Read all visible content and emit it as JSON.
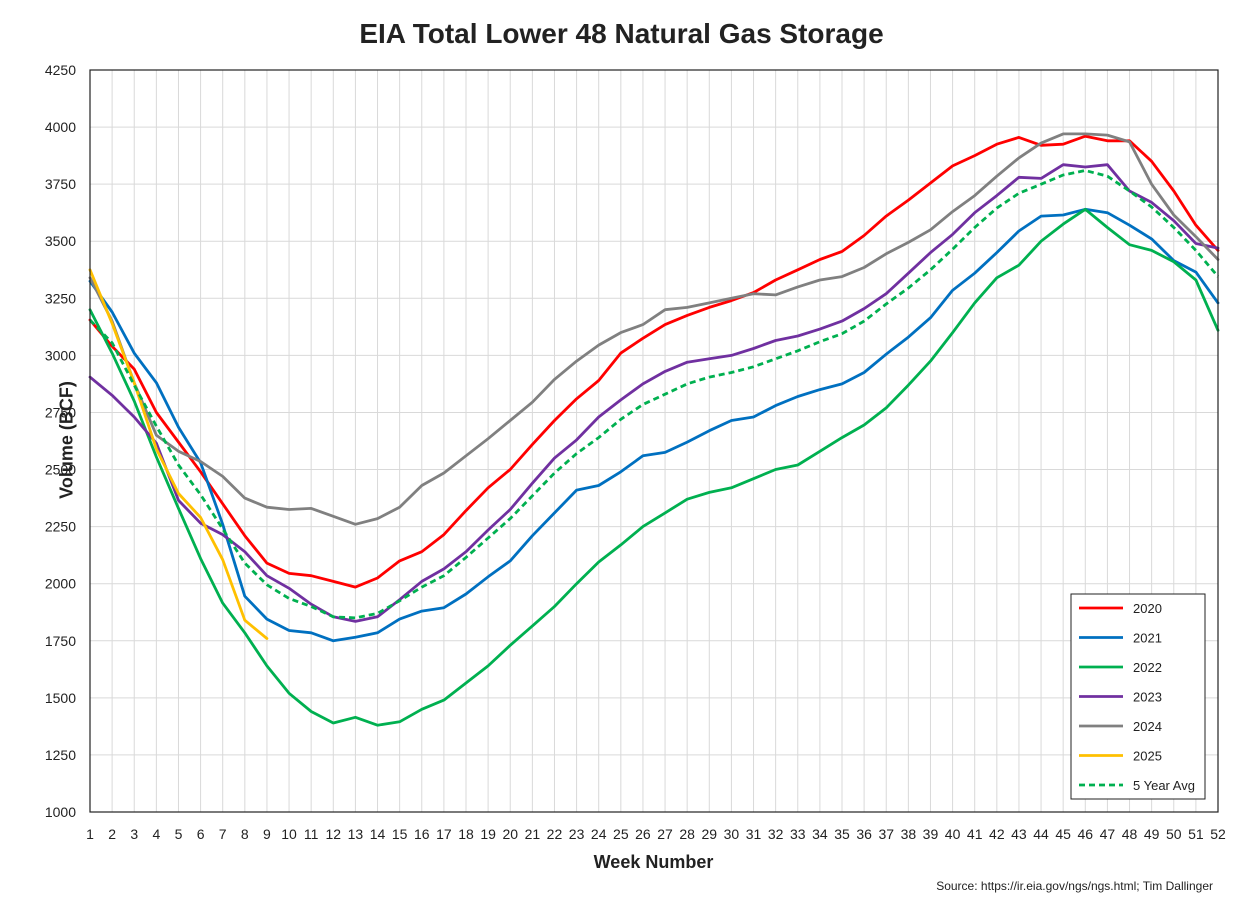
{
  "chart_data": {
    "type": "line",
    "title": "EIA Total Lower 48 Natural Gas Storage",
    "xlabel": "Week Number",
    "ylabel": "Volume (BCF)",
    "source": "Source: https://ir.eia.gov/ngs/ngs.html; Tim Dallinger",
    "xlim": [
      1,
      52
    ],
    "ylim": [
      1000,
      4250
    ],
    "grid": true,
    "legend_position": "bottom-right",
    "x_ticks": [
      1,
      2,
      3,
      4,
      5,
      6,
      7,
      8,
      9,
      10,
      11,
      12,
      13,
      14,
      15,
      16,
      17,
      18,
      19,
      20,
      21,
      22,
      23,
      24,
      25,
      26,
      27,
      28,
      29,
      30,
      31,
      32,
      33,
      34,
      35,
      36,
      37,
      38,
      39,
      40,
      41,
      42,
      43,
      44,
      45,
      46,
      47,
      48,
      49,
      50,
      51,
      52
    ],
    "y_ticks": [
      1000,
      1250,
      1500,
      1750,
      2000,
      2250,
      2500,
      2750,
      3000,
      3250,
      3500,
      3750,
      4000,
      4250
    ],
    "series": [
      {
        "name": "2020",
        "color": "#ff0000",
        "dashed": false,
        "values": [
          3155,
          3040,
          2940,
          2750,
          2620,
          2490,
          2350,
          2210,
          2090,
          2045,
          2035,
          2010,
          1985,
          2025,
          2100,
          2140,
          2215,
          2320,
          2420,
          2500,
          2610,
          2715,
          2810,
          2890,
          3010,
          3075,
          3135,
          3175,
          3210,
          3240,
          3275,
          3330,
          3375,
          3420,
          3455,
          3525,
          3610,
          3680,
          3755,
          3830,
          3875,
          3925,
          3955,
          3920,
          3925,
          3960,
          3940,
          3940,
          3850,
          3720,
          3570,
          3460
        ]
      },
      {
        "name": "2021",
        "color": "#0070c0",
        "dashed": false,
        "values": [
          3325,
          3190,
          3010,
          2880,
          2685,
          2530,
          2260,
          1945,
          1845,
          1795,
          1785,
          1750,
          1765,
          1785,
          1845,
          1880,
          1895,
          1955,
          2030,
          2100,
          2210,
          2310,
          2410,
          2430,
          2490,
          2560,
          2575,
          2620,
          2670,
          2715,
          2730,
          2780,
          2820,
          2850,
          2875,
          2925,
          3005,
          3080,
          3165,
          3285,
          3360,
          3450,
          3545,
          3610,
          3615,
          3640,
          3625,
          3570,
          3510,
          3415,
          3365,
          3230
        ]
      },
      {
        "name": "2022",
        "color": "#00b050",
        "dashed": false,
        "values": [
          3200,
          3010,
          2800,
          2555,
          2330,
          2110,
          1915,
          1785,
          1640,
          1520,
          1440,
          1390,
          1415,
          1380,
          1395,
          1450,
          1490,
          1565,
          1640,
          1730,
          1815,
          1900,
          2000,
          2095,
          2170,
          2250,
          2310,
          2370,
          2400,
          2420,
          2460,
          2500,
          2520,
          2580,
          2640,
          2695,
          2770,
          2870,
          2975,
          3100,
          3230,
          3340,
          3395,
          3500,
          3575,
          3640,
          3560,
          3485,
          3460,
          3410,
          3330,
          3110
        ]
      },
      {
        "name": "2023",
        "color": "#7030a0",
        "dashed": false,
        "values": [
          2905,
          2825,
          2730,
          2615,
          2365,
          2265,
          2215,
          2140,
          2035,
          1980,
          1910,
          1855,
          1835,
          1855,
          1930,
          2010,
          2065,
          2140,
          2235,
          2325,
          2440,
          2550,
          2630,
          2730,
          2805,
          2875,
          2930,
          2970,
          2985,
          3000,
          3030,
          3065,
          3085,
          3115,
          3150,
          3205,
          3270,
          3360,
          3450,
          3530,
          3625,
          3700,
          3780,
          3775,
          3835,
          3825,
          3835,
          3720,
          3670,
          3590,
          3490,
          3470
        ]
      },
      {
        "name": "2024",
        "color": "#808080",
        "dashed": false,
        "values": [
          3340,
          3150,
          2880,
          2650,
          2580,
          2535,
          2470,
          2375,
          2335,
          2325,
          2330,
          2295,
          2260,
          2285,
          2335,
          2430,
          2485,
          2560,
          2635,
          2715,
          2795,
          2895,
          2975,
          3045,
          3100,
          3135,
          3200,
          3210,
          3230,
          3250,
          3270,
          3265,
          3300,
          3330,
          3345,
          3385,
          3445,
          3495,
          3550,
          3630,
          3700,
          3785,
          3865,
          3930,
          3970,
          3970,
          3965,
          3935,
          3750,
          3615,
          3520,
          3420
        ]
      },
      {
        "name": "2025",
        "color": "#ffc000",
        "dashed": false,
        "values": [
          3375,
          3140,
          2880,
          2590,
          2395,
          2290,
          2105,
          1840,
          1760
        ]
      },
      {
        "name": "5 Year Avg",
        "color": "#00b050",
        "dashed": true,
        "values": [
          3155,
          3055,
          2870,
          2690,
          2520,
          2390,
          2240,
          2090,
          1995,
          1935,
          1900,
          1855,
          1850,
          1870,
          1925,
          1985,
          2035,
          2115,
          2200,
          2285,
          2385,
          2485,
          2570,
          2640,
          2720,
          2785,
          2830,
          2875,
          2905,
          2925,
          2950,
          2985,
          3020,
          3060,
          3095,
          3150,
          3225,
          3295,
          3375,
          3465,
          3560,
          3645,
          3710,
          3750,
          3790,
          3810,
          3785,
          3720,
          3650,
          3560,
          3460,
          3345
        ]
      }
    ]
  }
}
